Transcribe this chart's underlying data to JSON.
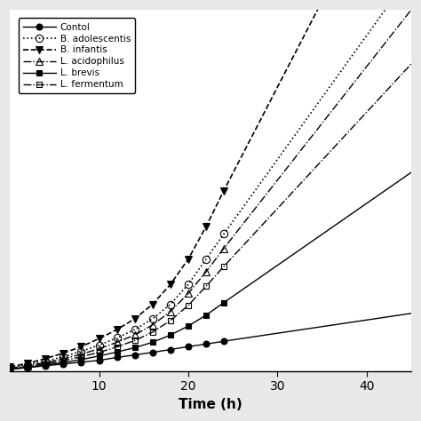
{
  "xlabel": "Time (h)",
  "xlim": [
    0,
    45
  ],
  "ylim": [
    0,
    1.0
  ],
  "xticks": [
    10,
    20,
    30,
    40
  ],
  "background_color": "#e8e8e8",
  "plot_bg": "#ffffff",
  "legend_order": [
    "Contol",
    "B. adolescentis",
    "B. infantis",
    "L. acidophilus",
    "L. brevis",
    "L. fermentum"
  ],
  "series_data": {
    "Contol": {
      "x": [
        0,
        2,
        4,
        6,
        8,
        10,
        12,
        14,
        16,
        18,
        20,
        22,
        24,
        45
      ],
      "y": [
        0.005,
        0.01,
        0.015,
        0.02,
        0.025,
        0.03,
        0.038,
        0.045,
        0.052,
        0.06,
        0.068,
        0.075,
        0.083,
        0.16
      ],
      "ls": "-",
      "marker": "o",
      "mfc": "black",
      "ms": 5,
      "lw": 1.0,
      "marker_x": [
        0,
        2,
        4,
        6,
        8,
        10,
        12,
        14,
        16,
        18,
        20,
        22,
        24
      ]
    },
    "B. adolescentis": {
      "x": [
        0,
        2,
        4,
        6,
        8,
        10,
        12,
        14,
        16,
        18,
        20,
        22,
        24,
        45
      ],
      "y": [
        0.01,
        0.018,
        0.028,
        0.04,
        0.055,
        0.072,
        0.092,
        0.115,
        0.145,
        0.185,
        0.24,
        0.31,
        0.38,
        1.1
      ],
      "ls": ":",
      "marker": "o",
      "mfc": "none",
      "ms": 6,
      "lw": 1.2,
      "marker_x": [
        0,
        2,
        4,
        6,
        8,
        10,
        12,
        14,
        16,
        18,
        20,
        22,
        24
      ]
    },
    "B. infantis": {
      "x": [
        0,
        2,
        4,
        6,
        8,
        10,
        12,
        14,
        16,
        18,
        20,
        22,
        24,
        45
      ],
      "y": [
        0.012,
        0.022,
        0.035,
        0.05,
        0.068,
        0.09,
        0.115,
        0.145,
        0.185,
        0.24,
        0.31,
        0.4,
        0.5,
        1.5
      ],
      "ls": "--",
      "marker": "v",
      "mfc": "black",
      "ms": 6,
      "lw": 1.2,
      "marker_x": [
        0,
        2,
        4,
        6,
        8,
        10,
        12,
        14,
        16,
        18,
        20,
        22,
        24
      ]
    },
    "L. acidophilus": {
      "x": [
        0,
        2,
        4,
        6,
        8,
        10,
        12,
        14,
        16,
        18,
        20,
        22,
        24,
        45
      ],
      "y": [
        0.008,
        0.015,
        0.024,
        0.034,
        0.047,
        0.062,
        0.08,
        0.1,
        0.128,
        0.165,
        0.215,
        0.275,
        0.34,
        1.0
      ],
      "ls": "-.",
      "marker": "^",
      "mfc": "none",
      "ms": 6,
      "lw": 1.0,
      "marker_x": [
        0,
        2,
        4,
        6,
        8,
        10,
        12,
        14,
        16,
        18,
        20,
        22,
        24
      ]
    },
    "L. brevis": {
      "x": [
        0,
        2,
        4,
        6,
        8,
        10,
        12,
        14,
        16,
        18,
        20,
        22,
        24,
        45
      ],
      "y": [
        0.006,
        0.011,
        0.017,
        0.024,
        0.032,
        0.042,
        0.053,
        0.065,
        0.08,
        0.1,
        0.125,
        0.155,
        0.19,
        0.55
      ],
      "ls": "-",
      "marker": "s",
      "mfc": "black",
      "ms": 5,
      "lw": 1.0,
      "marker_x": [
        0,
        2,
        4,
        6,
        8,
        10,
        12,
        14,
        16,
        18,
        20,
        22,
        24
      ]
    },
    "L. fermentum": {
      "x": [
        0,
        2,
        4,
        6,
        8,
        10,
        12,
        14,
        16,
        18,
        20,
        22,
        24,
        45
      ],
      "y": [
        0.007,
        0.013,
        0.02,
        0.029,
        0.04,
        0.052,
        0.067,
        0.085,
        0.108,
        0.14,
        0.182,
        0.235,
        0.29,
        0.85
      ],
      "ls": "-.",
      "marker": "s",
      "mfc": "none",
      "ms": 5,
      "lw": 1.0,
      "marker_x": [
        0,
        2,
        4,
        6,
        8,
        10,
        12,
        14,
        16,
        18,
        20,
        22,
        24
      ]
    }
  }
}
